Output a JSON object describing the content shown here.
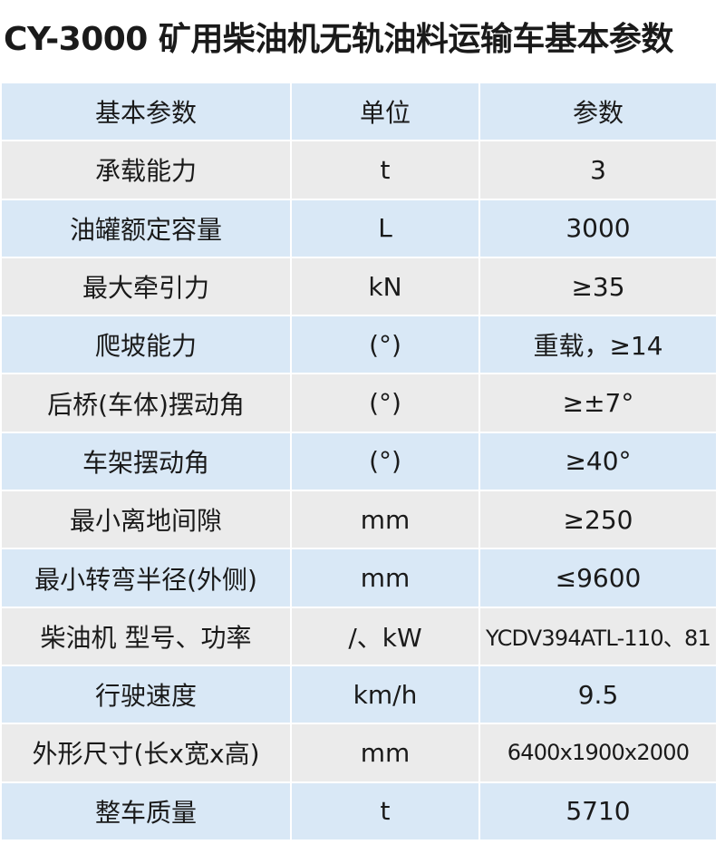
{
  "title": "CY-3000 矿用柴油机无轨油料运输车基本参数",
  "colors": {
    "row_blue": "#d9e8f6",
    "row_gray": "#ebebeb"
  },
  "header": [
    "基本参数",
    "单位",
    "参数"
  ],
  "rows": [
    [
      "承载能力",
      "t",
      "3"
    ],
    [
      "油罐额定容量",
      "L",
      "3000"
    ],
    [
      "最大牵引力",
      "kN",
      "≥35"
    ],
    [
      "爬坡能力",
      "(°)",
      "重载，≥14"
    ],
    [
      "后桥(车体)摆动角",
      "(°)",
      "≥±7°"
    ],
    [
      "车架摆动角",
      "(°)",
      "≥40°"
    ],
    [
      "最小离地间隙",
      "mm",
      "≥250"
    ],
    [
      "最小转弯半径(外侧)",
      "mm",
      "≤9600"
    ],
    [
      "柴油机 型号、功率",
      "/、kW",
      "YCDV394ATL-110、81"
    ],
    [
      "行驶速度",
      "km/h",
      "9.5"
    ],
    [
      "外形尺寸(长x宽x高)",
      "mm",
      "6400x1900x2000"
    ],
    [
      "整车质量",
      "t",
      "5710"
    ]
  ]
}
